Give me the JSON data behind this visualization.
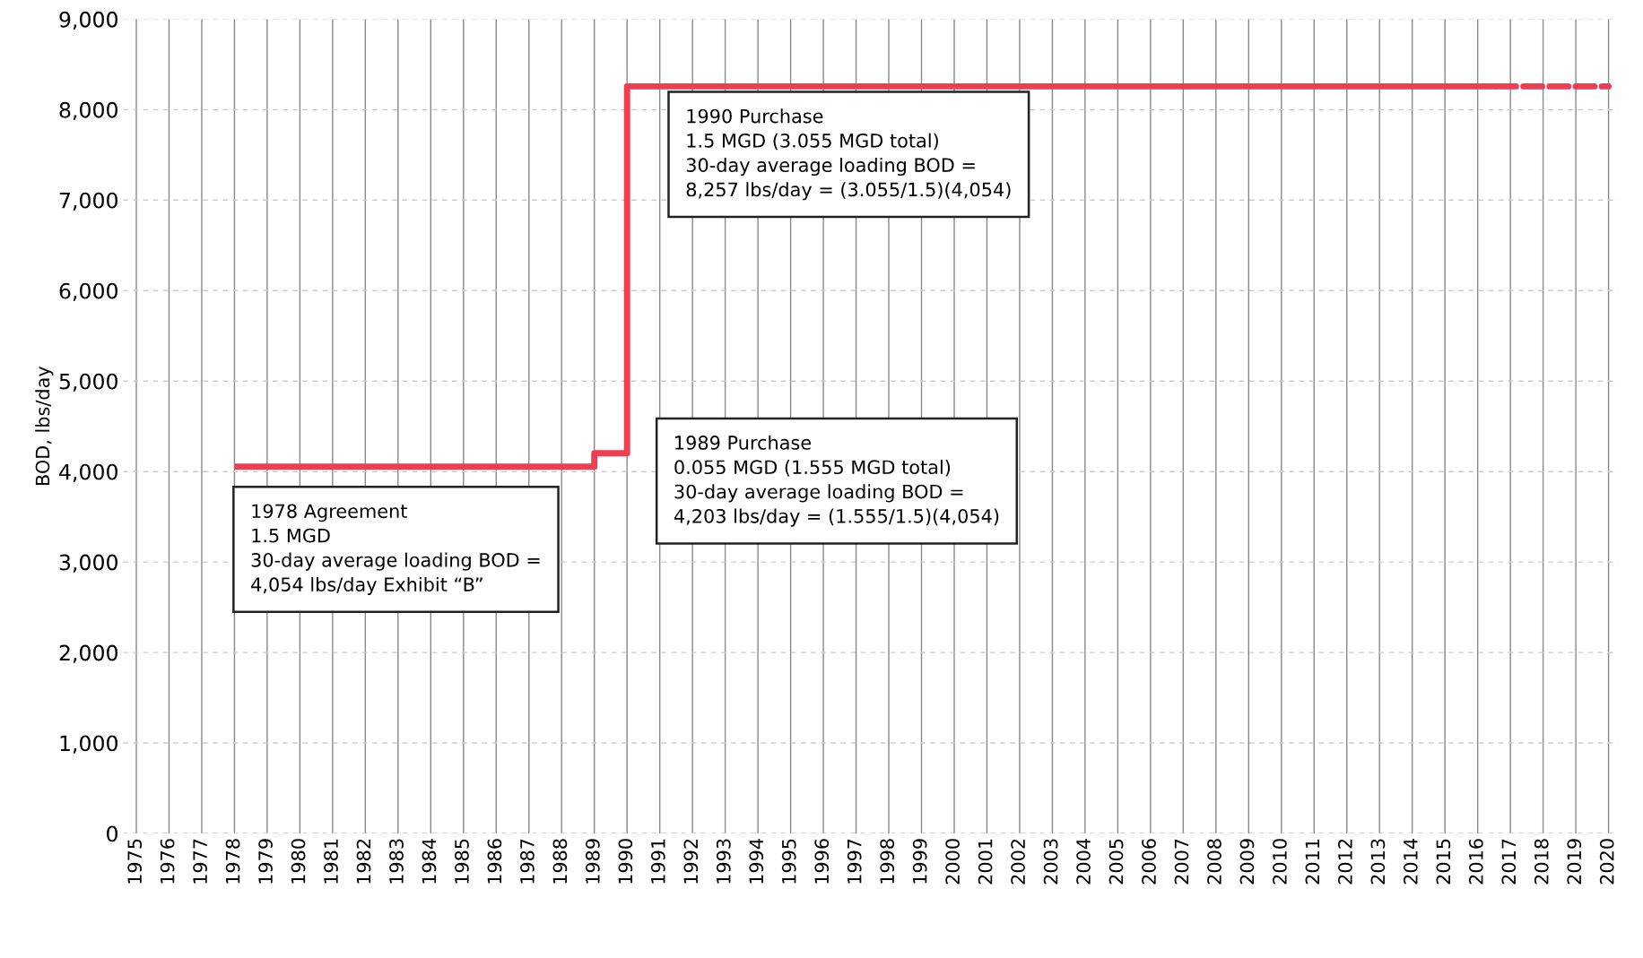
{
  "chart_data": {
    "type": "step",
    "ylabel": "BOD, lbs/day",
    "series": [
      {
        "color": "#ee3f52",
        "line_style": "solid",
        "x": [
          1978,
          1989,
          1990,
          2016.6
        ],
        "values": [
          4054,
          4203,
          8257,
          8257
        ]
      },
      {
        "type": "line",
        "color": "#ee3f52",
        "line_style": "dashed",
        "x": [
          2016.6,
          2020
        ],
        "values": [
          8257,
          8257
        ]
      }
    ],
    "xlim": [
      1974.6,
      2020.3
    ],
    "xticks": [
      1975,
      1976,
      1977,
      1978,
      1979,
      1980,
      1981,
      1982,
      1983,
      1984,
      1985,
      1986,
      1987,
      1988,
      1989,
      1990,
      1991,
      1992,
      1993,
      1994,
      1995,
      1996,
      1997,
      1998,
      1999,
      2000,
      2001,
      2002,
      2003,
      2004,
      2005,
      2006,
      2007,
      2008,
      2009,
      2010,
      2011,
      2012,
      2013,
      2014,
      2015,
      2016,
      2017,
      2018,
      2019,
      2020
    ],
    "ylim": [
      0,
      9000
    ],
    "yticks": [
      0,
      {
        "value": 1000,
        "label": "1,000"
      },
      {
        "value": 2000,
        "label": "2,000"
      },
      {
        "value": 3000,
        "label": "3,000"
      },
      {
        "value": 4000,
        "label": "4,000"
      },
      {
        "value": 5000,
        "label": "5,000"
      },
      {
        "value": 6000,
        "label": "6,000"
      },
      {
        "value": 7000,
        "label": "7,000"
      },
      {
        "value": 8000,
        "label": "8,000"
      },
      {
        "value": 9000,
        "label": "9,000"
      }
    ],
    "grid": true,
    "annotations": [
      "1978 Agreement\n1.5 MGD\n30-day average loading BOD =\n4,054 lbs/day Exhibit “B”",
      "1989 Purchase\n0.055 MGD (1.555 MGD total)\n30-day average loading BOD =\n4,203 lbs/day = (1.555/1.5)(4,054)",
      "1990 Purchase\n1.5 MGD (3.055 MGD total)\n30-day average loading BOD =\n8,257 lbs/day = (3.055/1.5)(4,054)"
    ]
  }
}
